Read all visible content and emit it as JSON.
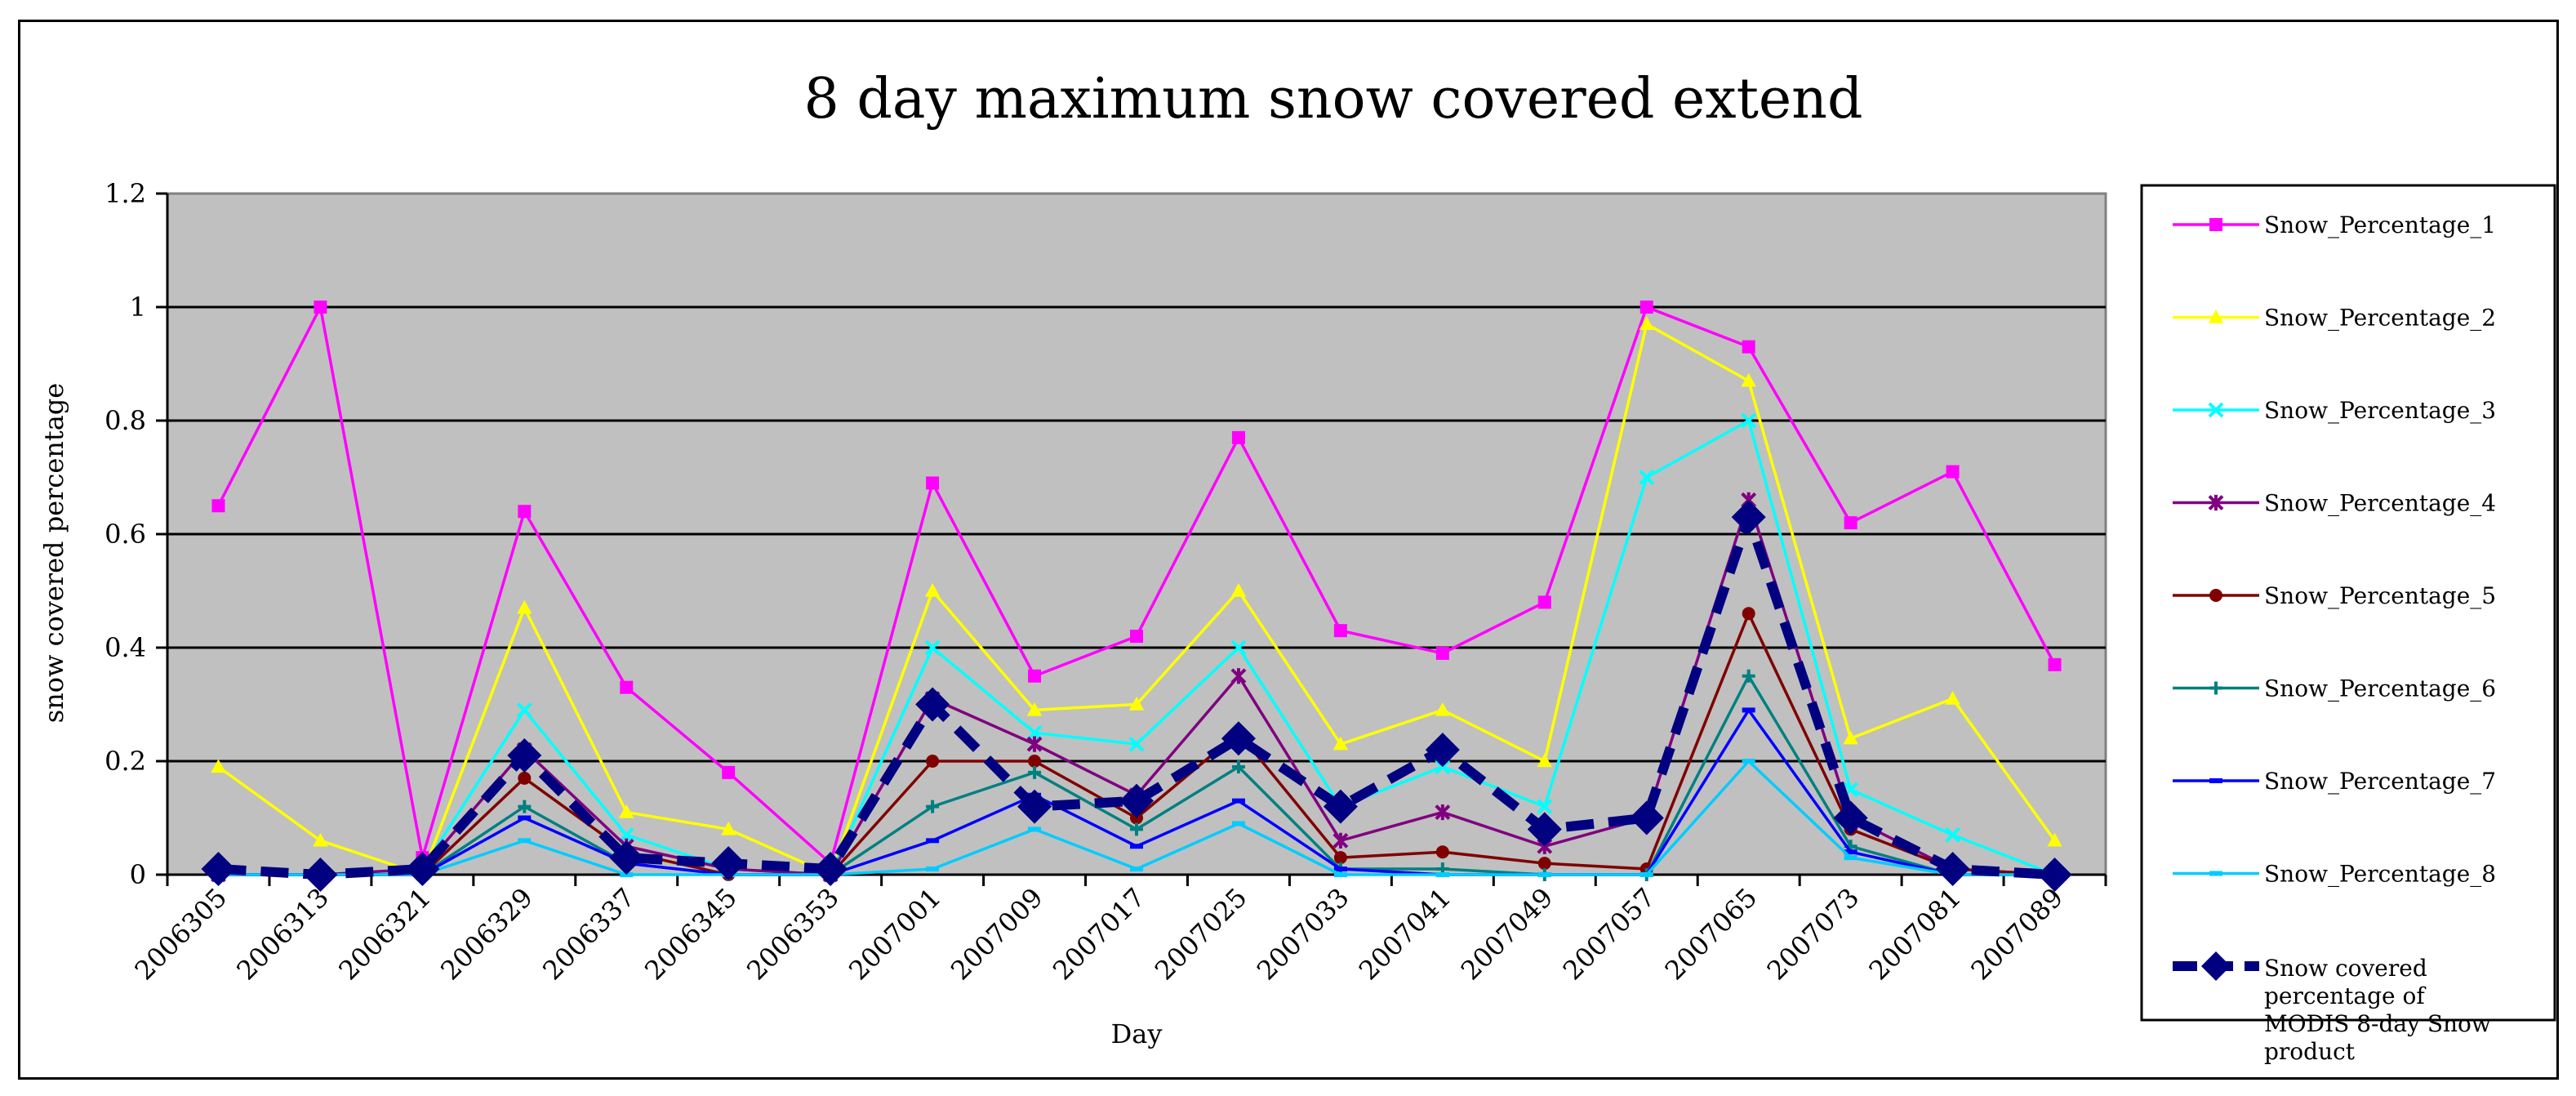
{
  "chart_data": {
    "type": "line",
    "title": "8 day maximum snow covered extend",
    "xlabel": "Day",
    "ylabel": "snow covered percentage",
    "ylim": [
      0,
      1.2
    ],
    "yticks": [
      "0",
      "0.2",
      "0.4",
      "0.6",
      "0.8",
      "1",
      "1.2"
    ],
    "grid": "horizontal",
    "legend_position": "right",
    "plot_background": "#c0c0c0",
    "categories": [
      "2006305",
      "2006313",
      "2006321",
      "2006329",
      "2006337",
      "2006345",
      "2006353",
      "2007001",
      "2007009",
      "2007017",
      "2007025",
      "2007033",
      "2007041",
      "2007049",
      "2007057",
      "2007065",
      "2007073",
      "2007081",
      "2007089"
    ],
    "series": [
      {
        "name": "Snow_Percentage_1",
        "color": "#ff00ff",
        "marker": "square",
        "style": "solid",
        "values": [
          0.65,
          1.0,
          0.03,
          0.64,
          0.33,
          0.18,
          0.02,
          0.69,
          0.35,
          0.42,
          0.77,
          0.43,
          0.39,
          0.48,
          1.0,
          0.93,
          0.62,
          0.71,
          0.37
        ]
      },
      {
        "name": "Snow_Percentage_2",
        "color": "#ffff00",
        "marker": "triangle",
        "style": "solid",
        "values": [
          0.19,
          0.06,
          0.0,
          0.47,
          0.11,
          0.08,
          0.0,
          0.5,
          0.29,
          0.3,
          0.5,
          0.23,
          0.29,
          0.2,
          0.97,
          0.87,
          0.24,
          0.31,
          0.06
        ]
      },
      {
        "name": "Snow_Percentage_3",
        "color": "#00ffff",
        "marker": "x",
        "style": "solid",
        "values": [
          0.0,
          0.0,
          0.01,
          0.29,
          0.07,
          0.01,
          0.0,
          0.4,
          0.25,
          0.23,
          0.4,
          0.12,
          0.19,
          0.12,
          0.7,
          0.8,
          0.15,
          0.07,
          0.0
        ]
      },
      {
        "name": "Snow_Percentage_4",
        "color": "#800080",
        "marker": "star",
        "style": "solid",
        "values": [
          0.0,
          0.0,
          0.01,
          0.22,
          0.05,
          0.01,
          0.0,
          0.31,
          0.23,
          0.14,
          0.35,
          0.06,
          0.11,
          0.05,
          0.1,
          0.66,
          0.1,
          0.01,
          0.0
        ]
      },
      {
        "name": "Snow_Percentage_5",
        "color": "#800000",
        "marker": "circle",
        "style": "solid",
        "values": [
          0.0,
          0.0,
          0.0,
          0.17,
          0.04,
          0.0,
          0.0,
          0.2,
          0.2,
          0.1,
          0.25,
          0.03,
          0.04,
          0.02,
          0.01,
          0.46,
          0.08,
          0.01,
          0.0
        ]
      },
      {
        "name": "Snow_Percentage_6",
        "color": "#008080",
        "marker": "plus",
        "style": "solid",
        "values": [
          0.0,
          0.0,
          0.0,
          0.12,
          0.02,
          0.0,
          0.0,
          0.12,
          0.18,
          0.08,
          0.19,
          0.01,
          0.01,
          0.0,
          0.0,
          0.35,
          0.05,
          0.0,
          0.0
        ]
      },
      {
        "name": "Snow_Percentage_7",
        "color": "#0000ff",
        "marker": "dash",
        "style": "solid",
        "values": [
          0.0,
          0.0,
          0.0,
          0.1,
          0.02,
          0.0,
          0.0,
          0.06,
          0.14,
          0.05,
          0.13,
          0.01,
          0.0,
          0.0,
          0.0,
          0.29,
          0.04,
          0.0,
          0.0
        ]
      },
      {
        "name": "Snow_Percentage_8",
        "color": "#00ccff",
        "marker": "dash",
        "style": "solid",
        "values": [
          0.0,
          0.0,
          0.0,
          0.06,
          0.0,
          0.0,
          0.0,
          0.01,
          0.08,
          0.01,
          0.09,
          0.0,
          0.0,
          0.0,
          0.0,
          0.2,
          0.03,
          0.0,
          0.0
        ]
      },
      {
        "name": "Snow covered percentage of MODIS 8-day Snow product",
        "color": "#000080",
        "marker": "diamond",
        "style": "dashed",
        "values": [
          0.01,
          0.0,
          0.01,
          0.21,
          0.03,
          0.02,
          0.01,
          0.3,
          0.12,
          0.13,
          0.24,
          0.12,
          0.22,
          0.08,
          0.1,
          0.63,
          0.1,
          0.01,
          0.0
        ]
      }
    ]
  }
}
